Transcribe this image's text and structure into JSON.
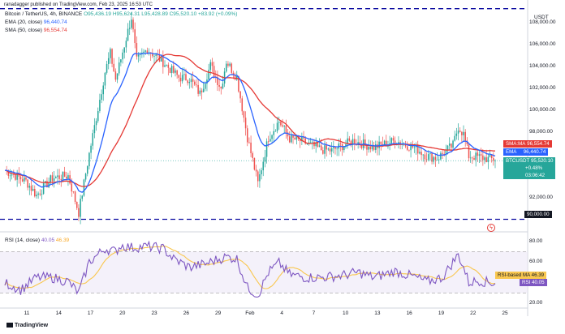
{
  "attribution": "ranadagger published on TradingView.com, Feb 23, 2025 16:53 UTC",
  "legend": {
    "symbol": "Bitcoin / TetherUS, 4h, BINANCE",
    "ohlc": "O95,436.19 H95,624.31 L95,428.89 C95,520.10 +83.92 (+0.09%)",
    "ema_label": "EMA (20, close)",
    "ema_value": "96,440.74",
    "sma_label": "SMA (50, close)",
    "sma_value": "96,554.74"
  },
  "currency": "USDT",
  "rsi_legend": {
    "label": "RSI (14, close)",
    "value1": "40.05",
    "value2": "46.39"
  },
  "price_tags": {
    "sma": {
      "label": "SMA:MA",
      "value": "96,554.74"
    },
    "ema": {
      "label": "EMA",
      "value": "96,440.74"
    },
    "last": {
      "label": "BTCUSDT",
      "value": "95,520.10",
      "change": "+0.48%",
      "countdown": "03:06:42"
    },
    "support": {
      "value": "90,000.00"
    },
    "rsi_ma": {
      "label": "RSI-based MA",
      "value": "46.39"
    },
    "rsi": {
      "label": "RSI",
      "value": "40.05"
    }
  },
  "footer_logo": "TradingView",
  "colors": {
    "up": "#26a69a",
    "down": "#ef5350",
    "ema": "#2962ff",
    "sma": "#e53935",
    "rsi": "#7e57c2",
    "rsi_ma": "#f9c74f",
    "level": "#0a0aa0"
  },
  "chart_data": {
    "type": "candlestick",
    "interval": "4h",
    "price_axis": {
      "ticks": [
        "108,000.00",
        "106,000.00",
        "104,000.00",
        "102,000.00",
        "100,000.00",
        "98,000.00",
        "92,000.00"
      ],
      "range": [
        89000,
        109500
      ]
    },
    "time_axis": {
      "ticks": [
        "11",
        "14",
        "17",
        "20",
        "23",
        "26",
        "29",
        "Feb",
        "4",
        "7",
        "10",
        "13",
        "16",
        "19",
        "22",
        "25"
      ]
    },
    "horizontal_levels": [
      90000,
      109300
    ],
    "rsi_axis": {
      "ticks": [
        "80.00",
        "60.00",
        "40.00",
        "20.00"
      ],
      "range": [
        17,
        86
      ],
      "band": [
        30,
        70
      ]
    },
    "ohlc_anchors": [
      [
        0,
        94500
      ],
      [
        4,
        93500
      ],
      [
        6,
        92200
      ],
      [
        9,
        93800
      ],
      [
        12,
        94000
      ],
      [
        14,
        90600
      ],
      [
        16,
        96000
      ],
      [
        19,
        103500
      ],
      [
        20,
        105200
      ],
      [
        21,
        102800
      ],
      [
        24,
        108500
      ],
      [
        25,
        104500
      ],
      [
        27,
        105600
      ],
      [
        30,
        104400
      ],
      [
        33,
        103000
      ],
      [
        35,
        102900
      ],
      [
        37,
        101500
      ],
      [
        39,
        104100
      ],
      [
        41,
        102000
      ],
      [
        42,
        104500
      ],
      [
        44,
        103000
      ],
      [
        46,
        97500
      ],
      [
        48,
        93300
      ],
      [
        50,
        97500
      ],
      [
        52,
        99000
      ],
      [
        54,
        97400
      ],
      [
        56,
        97200
      ],
      [
        60,
        96400
      ],
      [
        62,
        96300
      ],
      [
        66,
        97200
      ],
      [
        70,
        96600
      ],
      [
        74,
        97200
      ],
      [
        78,
        96500
      ],
      [
        80,
        95800
      ],
      [
        82,
        95600
      ],
      [
        85,
        96800
      ],
      [
        86,
        98500
      ],
      [
        87,
        97800
      ],
      [
        88,
        95800
      ],
      [
        90,
        95700
      ],
      [
        92,
        95500
      ],
      [
        93,
        95520
      ]
    ],
    "rsi_anchors": [
      [
        0,
        40
      ],
      [
        3,
        33
      ],
      [
        6,
        45
      ],
      [
        9,
        45
      ],
      [
        12,
        41
      ],
      [
        14,
        30
      ],
      [
        16,
        60
      ],
      [
        19,
        73
      ],
      [
        21,
        70
      ],
      [
        22,
        76
      ],
      [
        24,
        74
      ],
      [
        27,
        75
      ],
      [
        30,
        73
      ],
      [
        32,
        63
      ],
      [
        35,
        55
      ],
      [
        38,
        58
      ],
      [
        40,
        62
      ],
      [
        42,
        65
      ],
      [
        44,
        63
      ],
      [
        46,
        35
      ],
      [
        48,
        28
      ],
      [
        50,
        50
      ],
      [
        52,
        59
      ],
      [
        54,
        48
      ],
      [
        57,
        45
      ],
      [
        60,
        45
      ],
      [
        64,
        47
      ],
      [
        67,
        50
      ],
      [
        70,
        45
      ],
      [
        74,
        51
      ],
      [
        78,
        45
      ],
      [
        80,
        41
      ],
      [
        83,
        45
      ],
      [
        85,
        60
      ],
      [
        86,
        67
      ],
      [
        87,
        55
      ],
      [
        88,
        40
      ],
      [
        90,
        42
      ],
      [
        92,
        40
      ],
      [
        93,
        40
      ]
    ]
  }
}
